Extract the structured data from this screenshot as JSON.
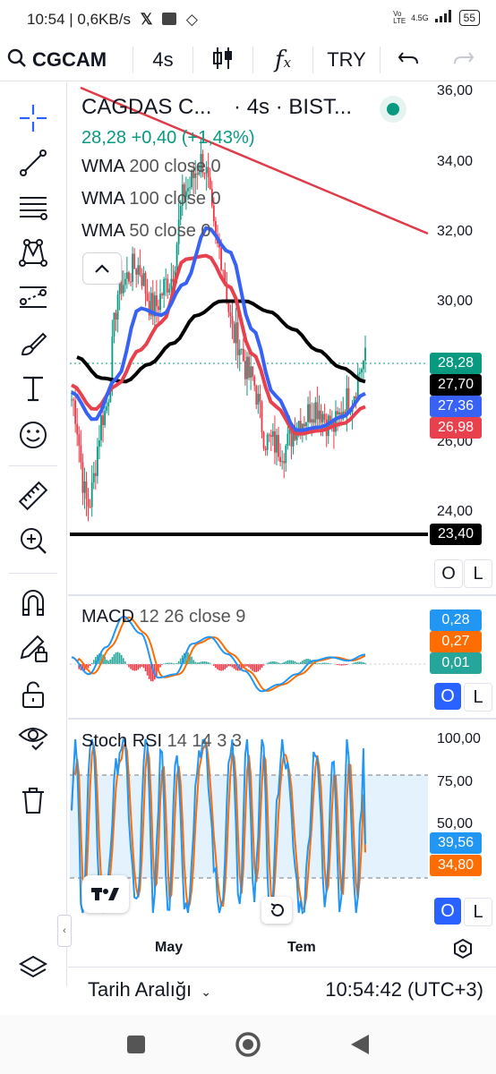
{
  "statusbar": {
    "time": "10:54",
    "net_speed": "0,6KB/s",
    "network_label": "4.5G",
    "volte_label": "Vo LTE",
    "battery": "55"
  },
  "toolbar": {
    "symbol": "CGCAM",
    "interval": "4s",
    "currency": "TRY",
    "fx_label": "f",
    "fx_sub": "x"
  },
  "legend": {
    "title": "CAGDAS C...",
    "meta": "· 4s · BIST...",
    "price_change": "28,28 +0,40 (+1,43%)",
    "wma200_name": "WMA",
    "wma200_params": "200 close 0",
    "wma100_name": "WMA",
    "wma100_params": "100 close 0",
    "wma50_name": "WMA",
    "wma50_params": "50 close 0"
  },
  "price_axis": {
    "ticks": [
      "36,00",
      "34,00",
      "32,00",
      "30,00",
      "26,00",
      "24,00"
    ]
  },
  "price_tags": {
    "last": "28,28",
    "wma200": "27,70",
    "wma50": "27,36",
    "wma100": "26,98",
    "support": "23,40"
  },
  "macd": {
    "name": "MACD",
    "params": "12 26 close 9",
    "tags": [
      "0,28",
      "0,27",
      "0,01"
    ]
  },
  "stoch": {
    "name": "Stoch RSI",
    "params": "14 14 3 3",
    "ticks": [
      "100,00",
      "75,00",
      "50,00"
    ],
    "tags": [
      "39,56",
      "34,80"
    ]
  },
  "panel_buttons": {
    "o": "O",
    "l": "L"
  },
  "time_axis": {
    "labels": [
      "May",
      "Tem"
    ]
  },
  "bottom": {
    "date_range": "Tarih Aralığı",
    "clock": "10:54:42 (UTC+3)"
  },
  "colors": {
    "green": "#089981",
    "red": "#f23645",
    "blue": "#2962ff",
    "black": "#000000",
    "wma50": "#3861f6",
    "wma100": "#e8414d",
    "macd_blue": "#2196f3",
    "macd_orange": "#ff6d00",
    "stoch_band": "#e3f2fd"
  }
}
